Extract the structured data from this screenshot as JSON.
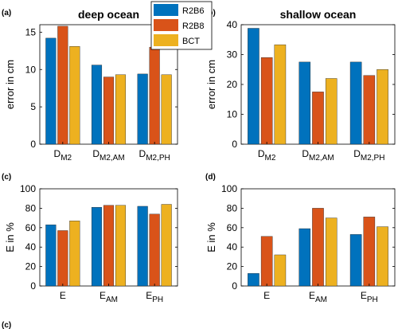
{
  "legend": {
    "placement": "top-center",
    "entries": [
      {
        "name": "R2B6",
        "color": "#0072BD"
      },
      {
        "name": "R2B8",
        "color": "#D95319"
      },
      {
        "name": "BCT",
        "color": "#EDB120"
      }
    ]
  },
  "chart_data": [
    {
      "id": "a",
      "panel_label": "(a)",
      "type": "bar",
      "title": "deep ocean",
      "ylabel": "error in cm",
      "ylim": [
        0,
        16
      ],
      "yticks": [
        0,
        5,
        10,
        15
      ],
      "categories": [
        {
          "base": "D",
          "sub": "M2"
        },
        {
          "base": "D",
          "sub": "M2,AM"
        },
        {
          "base": "D",
          "sub": "M2,PH"
        }
      ],
      "series": [
        {
          "name": "R2B6",
          "values": [
            14.2,
            10.6,
            9.4
          ]
        },
        {
          "name": "R2B8",
          "values": [
            15.8,
            9.0,
            13.0
          ]
        },
        {
          "name": "BCT",
          "values": [
            13.1,
            9.3,
            9.3
          ]
        }
      ]
    },
    {
      "id": "b",
      "panel_label": "(b)",
      "type": "bar",
      "title": "shallow ocean",
      "ylabel": "error in cm",
      "ylim": [
        0,
        40
      ],
      "yticks": [
        0,
        10,
        20,
        30,
        40
      ],
      "categories": [
        {
          "base": "D",
          "sub": "M2"
        },
        {
          "base": "D",
          "sub": "M2,AM"
        },
        {
          "base": "D",
          "sub": "M2,PH"
        }
      ],
      "series": [
        {
          "name": "R2B6",
          "values": [
            38.8,
            27.5,
            27.5
          ]
        },
        {
          "name": "R2B8",
          "values": [
            29.0,
            17.5,
            23.0
          ]
        },
        {
          "name": "BCT",
          "values": [
            33.3,
            22.0,
            25.0
          ]
        }
      ]
    },
    {
      "id": "c",
      "panel_label": "(c)",
      "type": "bar",
      "title": "",
      "ylabel": "E in %",
      "ylim": [
        0,
        100
      ],
      "yticks": [
        0,
        20,
        40,
        60,
        80,
        100
      ],
      "categories": [
        {
          "base": "E",
          "sub": ""
        },
        {
          "base": "E",
          "sub": "AM"
        },
        {
          "base": "E",
          "sub": "PH"
        }
      ],
      "series": [
        {
          "name": "R2B6",
          "values": [
            63,
            81,
            82
          ]
        },
        {
          "name": "R2B8",
          "values": [
            57,
            83,
            74
          ]
        },
        {
          "name": "BCT",
          "values": [
            67,
            83,
            84
          ]
        }
      ]
    },
    {
      "id": "d",
      "panel_label": "(d)",
      "type": "bar",
      "title": "",
      "ylabel": "E in %",
      "ylim": [
        0,
        100
      ],
      "yticks": [
        0,
        20,
        40,
        60,
        80,
        100
      ],
      "categories": [
        {
          "base": "E",
          "sub": ""
        },
        {
          "base": "E",
          "sub": "AM"
        },
        {
          "base": "E",
          "sub": "PH"
        }
      ],
      "series": [
        {
          "name": "R2B6",
          "values": [
            13,
            59,
            53
          ]
        },
        {
          "name": "R2B8",
          "values": [
            51,
            80,
            71
          ]
        },
        {
          "name": "BCT",
          "values": [
            32,
            70,
            61
          ]
        }
      ]
    }
  ],
  "bottom_fragment": "(c)"
}
